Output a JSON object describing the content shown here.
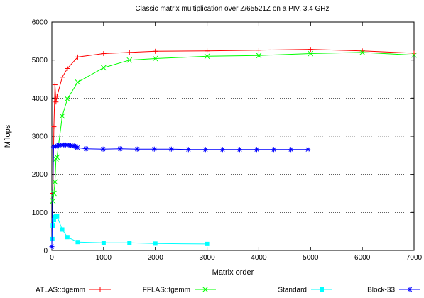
{
  "chart_data": {
    "type": "line",
    "title": "Classic matrix multiplication over Z/65521Z on a PIV, 3.4 GHz",
    "xlabel": "Matrix order",
    "ylabel": "Mflops",
    "xlim": [
      0,
      7000
    ],
    "ylim": [
      0,
      6000
    ],
    "xticks": [
      0,
      1000,
      2000,
      3000,
      4000,
      5000,
      6000,
      7000
    ],
    "yticks": [
      0,
      1000,
      2000,
      3000,
      4000,
      5000,
      6000
    ],
    "grid": "horizontal dotted",
    "legend_position": "bottom",
    "series": [
      {
        "name": "ATLAS::dgemm",
        "color": "#ff0000",
        "marker": "plus",
        "x": [
          20,
          40,
          60,
          80,
          100,
          200,
          300,
          500,
          1000,
          1500,
          2000,
          3000,
          4000,
          5000,
          6000,
          7000
        ],
        "y": [
          1500,
          3250,
          4350,
          3900,
          4050,
          4550,
          4780,
          5080,
          5170,
          5200,
          5230,
          5240,
          5260,
          5280,
          5240,
          5180
        ]
      },
      {
        "name": "FFLAS::fgemm",
        "color": "#00ff00",
        "marker": "cross",
        "x": [
          20,
          40,
          60,
          80,
          100,
          200,
          300,
          500,
          1000,
          1500,
          2000,
          3000,
          4000,
          5000,
          6000,
          7000
        ],
        "y": [
          1300,
          1500,
          1800,
          2400,
          2450,
          3530,
          3980,
          4420,
          4800,
          5000,
          5040,
          5100,
          5120,
          5170,
          5200,
          5130
        ]
      },
      {
        "name": "Standard",
        "color": "#00ffff",
        "marker": "square",
        "x": [
          10,
          20,
          40,
          60,
          80,
          100,
          200,
          300,
          500,
          1000,
          1500,
          2000,
          3000
        ],
        "y": [
          300,
          650,
          800,
          880,
          910,
          900,
          550,
          350,
          220,
          200,
          200,
          180,
          170
        ]
      },
      {
        "name": "Block-33",
        "color": "#0000ff",
        "marker": "star",
        "x": [
          0,
          33,
          66,
          99,
          132,
          165,
          198,
          231,
          264,
          297,
          330,
          363,
          396,
          429,
          462,
          495,
          660,
          990,
          1320,
          1650,
          1980,
          2310,
          2640,
          2970,
          3300,
          3630,
          3960,
          4290,
          4620,
          4950
        ],
        "y": [
          100,
          2720,
          2730,
          2750,
          2760,
          2760,
          2770,
          2770,
          2770,
          2770,
          2765,
          2760,
          2750,
          2740,
          2730,
          2700,
          2670,
          2660,
          2670,
          2660,
          2660,
          2660,
          2650,
          2650,
          2650,
          2650,
          2650,
          2650,
          2650,
          2650
        ]
      }
    ]
  }
}
